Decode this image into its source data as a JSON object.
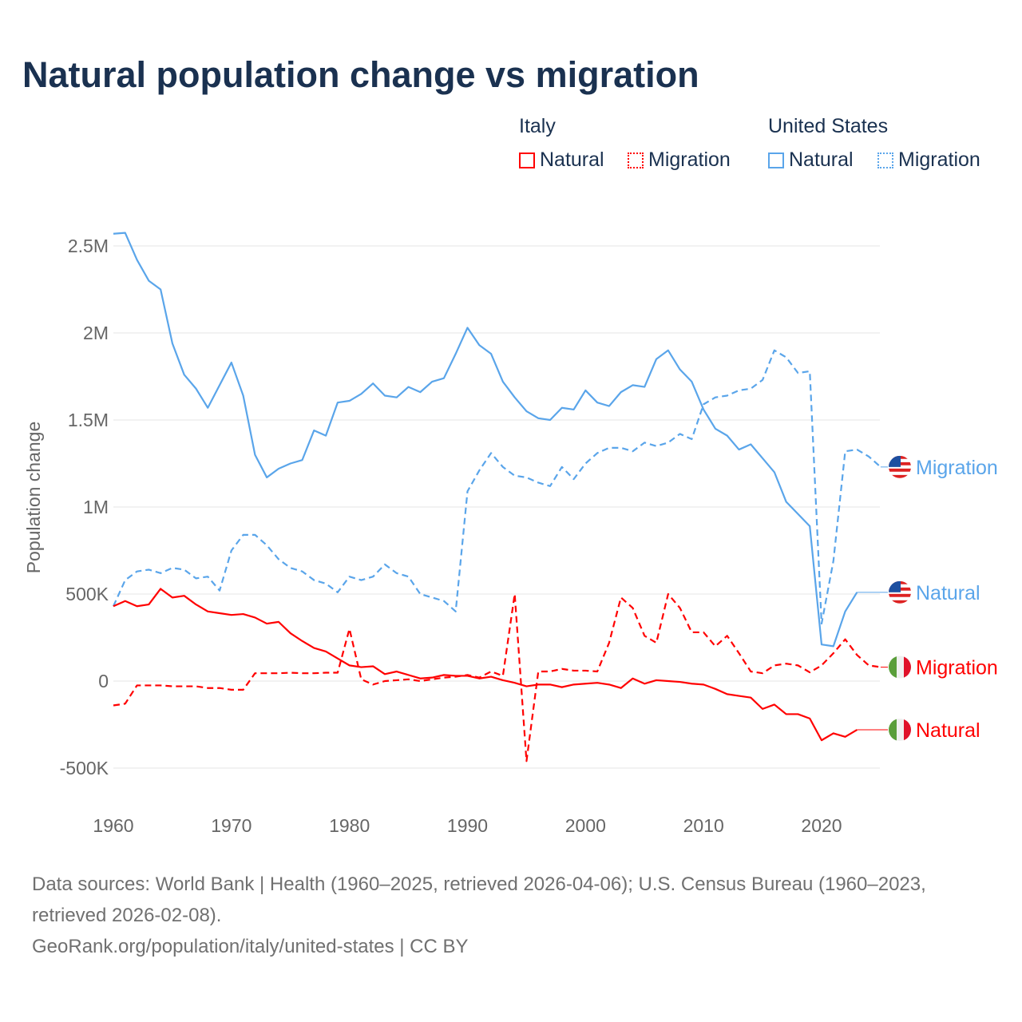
{
  "title": "Natural population change vs migration",
  "legend": {
    "groups": [
      {
        "name": "Italy",
        "items": [
          "Natural",
          "Migration"
        ]
      },
      {
        "name": "United States",
        "items": [
          "Natural",
          "Migration"
        ]
      }
    ]
  },
  "footer": {
    "sources": "Data sources: World Bank | Health (1960–2025, retrieved 2026-04-06); U.S. Census Bureau (1960–2023, retrieved 2026-02-08).",
    "link": "GeoRank.org/population/italy/united-states | CC BY"
  },
  "colors": {
    "italy": "#ff0000",
    "us": "#5aa5ea"
  },
  "chart_data": {
    "type": "line",
    "title": "Natural population change vs migration",
    "xlabel": "",
    "ylabel": "Population change",
    "xlim": [
      1960,
      2025
    ],
    "ylim": [
      -500000,
      2600000
    ],
    "x_ticks": [
      1960,
      1970,
      1980,
      1990,
      2000,
      2010,
      2020
    ],
    "y_ticks": [
      {
        "v": -500000,
        "label": "-500K"
      },
      {
        "v": 0,
        "label": "0"
      },
      {
        "v": 500000,
        "label": "500K"
      },
      {
        "v": 1000000,
        "label": "1M"
      },
      {
        "v": 1500000,
        "label": "1.5M"
      },
      {
        "v": 2000000,
        "label": "2M"
      },
      {
        "v": 2500000,
        "label": "2.5M"
      }
    ],
    "grid": true,
    "series": [
      {
        "name": "United States Natural",
        "end_label": "Natural",
        "country": "us",
        "dashed": false,
        "start": 1960,
        "label_value": 510000,
        "values": [
          2570,
          2575,
          2420,
          2300,
          2250,
          1940,
          1760,
          1680,
          1570,
          1700,
          1830,
          1640,
          1300,
          1170,
          1220,
          1250,
          1270,
          1440,
          1410,
          1600,
          1610,
          1650,
          1710,
          1640,
          1630,
          1690,
          1660,
          1720,
          1740,
          1880,
          2030,
          1930,
          1880,
          1720,
          1630,
          1550,
          1510,
          1500,
          1570,
          1560,
          1670,
          1600,
          1580,
          1660,
          1700,
          1690,
          1850,
          1900,
          1790,
          1720,
          1560,
          1450,
          1410,
          1330,
          1360,
          1280,
          1200,
          1030,
          960,
          890,
          210,
          200,
          400,
          510
        ]
      },
      {
        "name": "United States Migration",
        "end_label": "Migration",
        "country": "us",
        "dashed": true,
        "start": 1960,
        "label_value": 1230000,
        "values": [
          430,
          580,
          630,
          640,
          620,
          650,
          640,
          590,
          600,
          520,
          750,
          840,
          840,
          780,
          700,
          650,
          630,
          580,
          560,
          510,
          600,
          580,
          600,
          670,
          620,
          600,
          500,
          480,
          460,
          400,
          1090,
          1210,
          1310,
          1230,
          1180,
          1170,
          1140,
          1120,
          1230,
          1160,
          1250,
          1310,
          1340,
          1340,
          1320,
          1370,
          1350,
          1370,
          1420,
          1390,
          1590,
          1630,
          1640,
          1670,
          1680,
          1730,
          1900,
          1860,
          1770,
          1780,
          330,
          690,
          1320,
          1330,
          1290,
          1230
        ]
      },
      {
        "name": "Italy Migration",
        "end_label": "Migration",
        "country": "italy",
        "dashed": true,
        "start": 1960,
        "label_value": 80000,
        "values": [
          -140,
          -130,
          -25,
          -25,
          -25,
          -30,
          -30,
          -30,
          -40,
          -40,
          -50,
          -50,
          45,
          45,
          45,
          48,
          45,
          45,
          48,
          48,
          300,
          10,
          -20,
          0,
          5,
          10,
          0,
          10,
          20,
          25,
          35,
          20,
          55,
          30,
          500,
          -460,
          55,
          55,
          70,
          60,
          60,
          55,
          220,
          480,
          420,
          260,
          220,
          500,
          420,
          280,
          280,
          200,
          260,
          160,
          55,
          45,
          90,
          100,
          90,
          50,
          90,
          160,
          240,
          150,
          90,
          80
        ]
      },
      {
        "name": "Italy Natural",
        "end_label": "Natural",
        "country": "italy",
        "dashed": false,
        "start": 1960,
        "label_value": -280000,
        "values": [
          430,
          460,
          430,
          440,
          530,
          480,
          490,
          440,
          400,
          390,
          380,
          385,
          365,
          330,
          340,
          275,
          230,
          190,
          170,
          130,
          90,
          80,
          85,
          40,
          55,
          35,
          15,
          20,
          35,
          30,
          30,
          15,
          25,
          5,
          -10,
          -30,
          -20,
          -20,
          -35,
          -20,
          -15,
          -10,
          -20,
          -40,
          15,
          -15,
          5,
          0,
          -5,
          -15,
          -20,
          -45,
          -75,
          -85,
          -95,
          -160,
          -135,
          -190,
          -190,
          -215,
          -340,
          -300,
          -320,
          -280
        ]
      }
    ]
  }
}
